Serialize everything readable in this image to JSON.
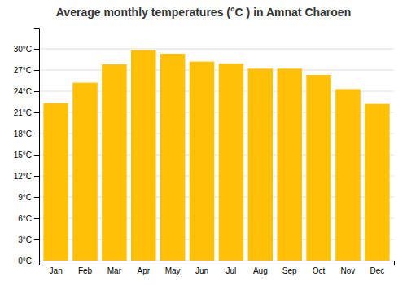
{
  "chart_data": {
    "type": "bar",
    "title": "Average monthly temperatures (°C ) in Amnat Charoen",
    "categories": [
      "Jan",
      "Feb",
      "Mar",
      "Apr",
      "May",
      "Jun",
      "Jul",
      "Aug",
      "Sep",
      "Oct",
      "Nov",
      "Dec"
    ],
    "values": [
      22.3,
      25.2,
      27.8,
      29.8,
      29.3,
      28.2,
      27.9,
      27.2,
      27.2,
      26.3,
      24.3,
      22.2
    ],
    "color": "#FFC107",
    "ylim": [
      0,
      33
    ],
    "yticks": [
      {
        "value": 0,
        "label": "0°C"
      },
      {
        "value": 3,
        "label": "3°C"
      },
      {
        "value": 6,
        "label": "6°C"
      },
      {
        "value": 9,
        "label": "9°C"
      },
      {
        "value": 12,
        "label": "12°C"
      },
      {
        "value": 15,
        "label": "15°C"
      },
      {
        "value": 18,
        "label": "18°C"
      },
      {
        "value": 21,
        "label": "21°C"
      },
      {
        "value": 24,
        "label": "24°C"
      },
      {
        "value": 27,
        "label": "27°C"
      },
      {
        "value": 30,
        "label": "30°C"
      }
    ],
    "grid": true
  }
}
